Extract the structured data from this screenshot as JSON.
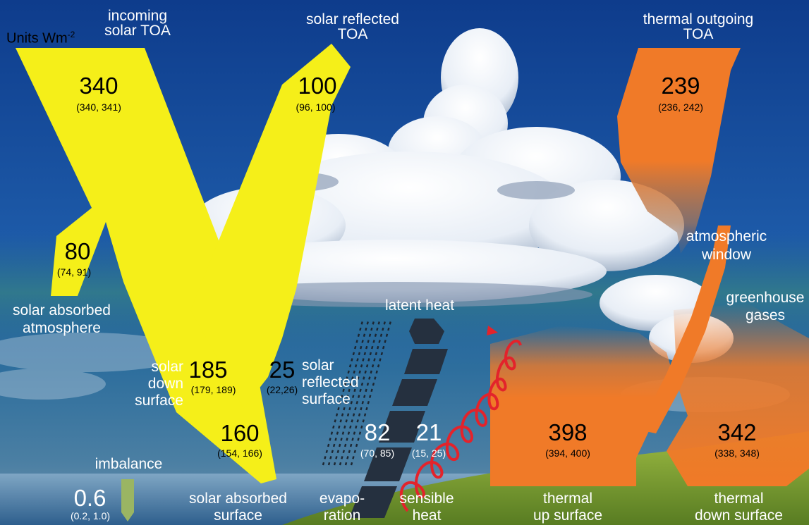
{
  "units": {
    "prefix": "Units Wm",
    "superscript": "-2"
  },
  "incoming_solar": {
    "label_line1": "incoming",
    "label_line2": "solar TOA",
    "value": "340",
    "range": "(340, 341)"
  },
  "solar_reflected_toa": {
    "label_line1": "solar reflected",
    "label_line2": "TOA",
    "value": "100",
    "range": "(96, 100)"
  },
  "thermal_outgoing_toa": {
    "label_line1": "thermal outgoing",
    "label_line2": "TOA",
    "value": "239",
    "range": "(236, 242)"
  },
  "solar_absorbed_atmosphere": {
    "label_line1": "solar absorbed",
    "label_line2": "atmosphere",
    "value": "80",
    "range": "(74, 91)"
  },
  "solar_down_surface": {
    "label_line1": "solar",
    "label_line2": "down",
    "label_line3": "surface",
    "value": "185",
    "range": "(179, 189)"
  },
  "solar_reflected_surface": {
    "label_line1": "solar",
    "label_line2": "reflected",
    "label_line3": "surface",
    "value": "25",
    "range": "(22,26)"
  },
  "solar_absorbed_surface": {
    "label_line1": "solar absorbed",
    "label_line2": "surface",
    "value": "160",
    "range": "(154, 166)"
  },
  "latent_heat": {
    "label": "latent heat"
  },
  "evaporation": {
    "label_line1": "evapo-",
    "label_line2": "ration",
    "value": "82",
    "range": "(70, 85)"
  },
  "sensible_heat": {
    "label_line1": "sensible",
    "label_line2": "heat",
    "value": "21",
    "range": "(15, 25)"
  },
  "atmospheric_window": {
    "label_line1": "atmospheric",
    "label_line2": "window"
  },
  "greenhouse_gases": {
    "label_line1": "greenhouse",
    "label_line2": "gases"
  },
  "thermal_up_surface": {
    "label_line1": "thermal",
    "label_line2": "up surface",
    "value": "398",
    "range": "(394, 400)"
  },
  "thermal_down_surface": {
    "label_line1": "thermal",
    "label_line2": "down surface",
    "value": "342",
    "range": "(338, 348)"
  },
  "imbalance": {
    "label": "imbalance",
    "value": "0.6",
    "range": "(0.2, 1.0)"
  },
  "colors": {
    "solar": "#f5ef19",
    "thermal": "#f07a28",
    "latent": "#25303f",
    "sensible": "#e3232b",
    "imbalance": "#9ab563",
    "sky_top": "#0f3a8a",
    "sea": "#3f6f9a",
    "grass": "#7fa233"
  }
}
